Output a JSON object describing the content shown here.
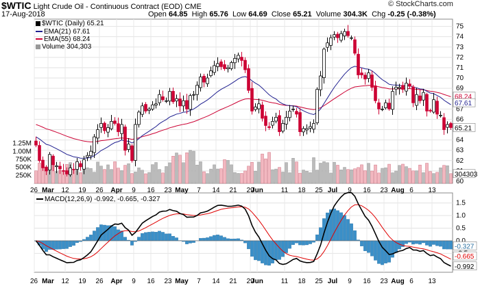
{
  "header": {
    "symbol": "$WTIC",
    "name": "Light Crude Oil - Continuous Contract (EOD)",
    "exchange": "CME",
    "date": "17-Aug-2018",
    "brand": "© StockCharts.com",
    "open_label": "Open",
    "open": "64.85",
    "high_label": "High",
    "high": "65.76",
    "low_label": "Low",
    "low": "64.69",
    "close_label": "Close",
    "close": "65.21",
    "volume_label": "Volume",
    "volume": "304.3K",
    "chg_label": "Chg",
    "chg": "-0.25 (-0.38%)"
  },
  "legend": {
    "price": "$WTIC (Daily) 65.21",
    "ema21": "EMA(21) 67.61",
    "ema55": "EMA(55) 68.24",
    "volume": "Volume 304,303"
  },
  "colors": {
    "up": "#000000",
    "down": "#cc0033",
    "ema21": "#1f1f8f",
    "ema55": "#cc0033",
    "vol_up": "#bbbbbb",
    "vol_down": "#f2b8c0",
    "macd": "#000000",
    "signal": "#e00000",
    "hist": "#3a8fc8"
  },
  "macd_panel": {
    "label": "MACD(12,26,9) -0.992, -0.665, -0.327",
    "y_ticks": [
      "1.5",
      "1.0",
      "0.5",
      "0.0",
      "-0.5"
    ],
    "last_hist": "-0.327",
    "last_signal": "-0.665",
    "last_macd": "-0.992"
  },
  "chart_data": {
    "type": "candlestick",
    "x_ticks": [
      "26",
      "Mar",
      "12",
      "19",
      "26",
      "Apr",
      "9",
      "16",
      "23",
      "May",
      "7",
      "14",
      "21",
      "29",
      "Jun",
      "11",
      "18",
      "25",
      "Jul",
      "9",
      "16",
      "23",
      "Aug",
      "6",
      "13"
    ],
    "price_ticks": [
      "75",
      "74",
      "73",
      "72",
      "71",
      "70",
      "69",
      "68",
      "67",
      "66",
      "65",
      "64",
      "63",
      "62",
      "61",
      "60"
    ],
    "volume_ticks": [
      "1.25M",
      "1.00M",
      "750K",
      "500K",
      "250K"
    ],
    "last_close": "65.21",
    "last_ema21": "67.61",
    "last_ema55": "68.24",
    "last_volume": "304303",
    "closes": [
      63.5,
      62.0,
      61.3,
      61.0,
      62.6,
      61.6,
      61.5,
      61.2,
      61.0,
      60.7,
      61.3,
      61.1,
      61.9,
      61.4,
      62.1,
      62.5,
      62.9,
      64.3,
      65.0,
      65.6,
      64.9,
      65.2,
      65.8,
      65.6,
      64.8,
      65.5,
      63.0,
      63.6,
      62.0,
      65.5,
      66.7,
      67.3,
      66.8,
      67.0,
      67.4,
      67.5,
      68.4,
      67.9,
      67.8,
      68.7,
      67.7,
      68.0,
      67.3,
      67.8,
      67.0,
      68.3,
      68.4,
      69.3,
      70.1,
      69.6,
      70.0,
      70.7,
      71.2,
      71.4,
      71.1,
      70.9,
      71.0,
      71.5,
      71.9,
      72.2,
      71.7,
      70.8,
      68.8,
      66.8,
      67.2,
      67.5,
      66.1,
      65.4,
      65.2,
      65.8,
      66.2,
      64.8,
      65.6,
      66.2,
      66.8,
      67.0,
      66.5,
      64.8,
      65.1,
      65.1,
      65.3,
      65.6,
      68.9,
      70.2,
      72.8,
      73.4,
      73.9,
      74.2,
      73.9,
      74.3,
      74.5,
      74.1,
      73.9,
      72.4,
      70.3,
      70.3,
      69.9,
      70.5,
      69.1,
      67.8,
      67.0,
      67.0,
      67.6,
      67.0,
      68.7,
      69.1,
      69.1,
      68.9,
      69.5,
      69.2,
      67.6,
      68.4,
      67.8,
      68.6,
      66.8,
      66.8,
      67.9,
      66.5,
      66.4,
      65.0,
      65.5,
      65.2
    ]
  }
}
